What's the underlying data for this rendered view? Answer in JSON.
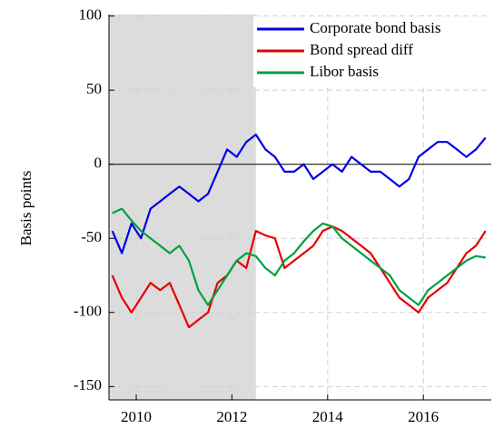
{
  "chart_data": {
    "type": "line",
    "ylabel": "Basis points",
    "x": [
      2009.5,
      2009.7,
      2009.9,
      2010.1,
      2010.3,
      2010.5,
      2010.7,
      2010.9,
      2011.1,
      2011.3,
      2011.5,
      2011.7,
      2011.9,
      2012.1,
      2012.3,
      2012.5,
      2012.7,
      2012.9,
      2013.1,
      2013.3,
      2013.5,
      2013.7,
      2013.9,
      2014.1,
      2014.3,
      2014.5,
      2014.7,
      2014.9,
      2015.1,
      2015.3,
      2015.5,
      2015.7,
      2015.9,
      2016.1,
      2016.3,
      2016.5,
      2016.7,
      2016.9,
      2017.1,
      2017.3
    ],
    "series": [
      {
        "name": "Corporate bond basis",
        "color": "#0000e6",
        "values": [
          -45,
          -60,
          -40,
          -50,
          -30,
          -25,
          -20,
          -15,
          -20,
          -25,
          -20,
          -5,
          10,
          5,
          15,
          20,
          10,
          5,
          -5,
          -5,
          0,
          -10,
          -5,
          0,
          -5,
          5,
          0,
          -5,
          -5,
          -10,
          -15,
          -10,
          5,
          10,
          15,
          15,
          10,
          5,
          10,
          18
        ]
      },
      {
        "name": "Bond spread diff",
        "color": "#e60000",
        "values": [
          -75,
          -90,
          -100,
          -90,
          -80,
          -85,
          -80,
          -95,
          -110,
          -105,
          -100,
          -80,
          -75,
          -65,
          -70,
          -45,
          -48,
          -50,
          -70,
          -65,
          -60,
          -55,
          -45,
          -42,
          -45,
          -50,
          -55,
          -60,
          -70,
          -80,
          -90,
          -95,
          -100,
          -90,
          -85,
          -80,
          -70,
          -60,
          -55,
          -45
        ]
      },
      {
        "name": "Libor basis",
        "color": "#00a040",
        "values": [
          -33,
          -30,
          -38,
          -45,
          -50,
          -55,
          -60,
          -55,
          -65,
          -85,
          -95,
          -85,
          -75,
          -65,
          -60,
          -62,
          -70,
          -75,
          -65,
          -60,
          -52,
          -45,
          -40,
          -42,
          -50,
          -55,
          -60,
          -65,
          -70,
          -75,
          -85,
          -90,
          -95,
          -85,
          -80,
          -75,
          -70,
          -65,
          -62,
          -63
        ]
      }
    ],
    "xlim": [
      2009.43,
      2017.42
    ],
    "xticks": [
      2010,
      2012,
      2014,
      2016
    ],
    "ylim": [
      -159,
      101
    ],
    "yticks": [
      -150,
      -100,
      -50,
      0,
      50,
      100
    ],
    "shaded_span": [
      2009.43,
      2012.5
    ],
    "shade_color": "#dcdcdc",
    "grid": true,
    "zero_line": true,
    "legend": "upper right"
  }
}
